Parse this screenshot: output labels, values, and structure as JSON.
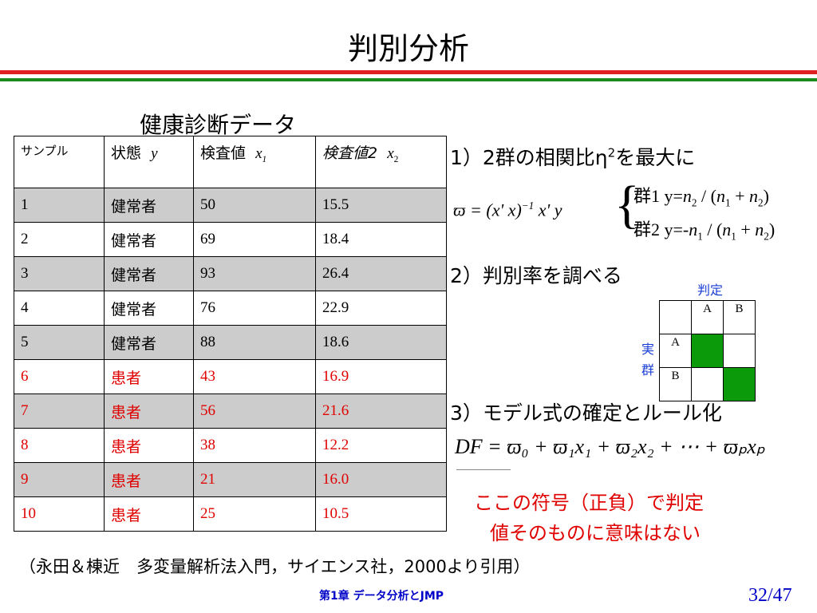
{
  "slide": {
    "title": "判別分析",
    "page": "32/47",
    "footer": "第1章 データ分析とJMP"
  },
  "colors": {
    "accent_red": "#e02020",
    "accent_green": "#1a8a1a",
    "patient_red": "#e00000",
    "footer_blue": "#0000c8",
    "cell_green": "#0a9a0a"
  },
  "table": {
    "caption": "健康診断データ",
    "headers": [
      "サンプル",
      "状態",
      "y",
      "検査値",
      "x",
      "1",
      "検査値2",
      "x",
      "2"
    ],
    "rows": [
      {
        "sample": "1",
        "state": "健常者",
        "x1": "50",
        "x2": "15.5"
      },
      {
        "sample": "2",
        "state": "健常者",
        "x1": "69",
        "x2": "18.4"
      },
      {
        "sample": "3",
        "state": "健常者",
        "x1": "93",
        "x2": "26.4"
      },
      {
        "sample": "4",
        "state": "健常者",
        "x1": "76",
        "x2": "22.9"
      },
      {
        "sample": "5",
        "state": "健常者",
        "x1": "88",
        "x2": "18.6"
      },
      {
        "sample": "6",
        "state": "患者",
        "x1": "43",
        "x2": "16.9"
      },
      {
        "sample": "7",
        "state": "患者",
        "x1": "56",
        "x2": "21.6"
      },
      {
        "sample": "8",
        "state": "患者",
        "x1": "38",
        "x2": "12.2"
      },
      {
        "sample": "9",
        "state": "患者",
        "x1": "21",
        "x2": "16.0"
      },
      {
        "sample": "10",
        "state": "患者",
        "x1": "25",
        "x2": "10.5"
      }
    ]
  },
  "step1": {
    "label": "1）2群の相関比η",
    "sup": "2",
    "label_tail": "を最大に",
    "formula": "ϖ = (x' x)",
    "formula_sup": "−1",
    "formula_tail": " x' y",
    "group1_prefix": "群1 y=",
    "group2_prefix": "群2 y=-",
    "n": "n",
    "sub1": "1",
    "sub2": "2",
    "slash": " / (",
    "plus": " + ",
    "close": ")"
  },
  "step2": {
    "label": "2）判別率を調べる",
    "judge_label": "判定",
    "actual_label": "実群",
    "col_a": "A",
    "col_b": "B",
    "row_a": "A",
    "row_b": "B"
  },
  "step3": {
    "label": "3）モデル式の確定とルール化",
    "formula": "DF = ϖ₀ + ϖ₁x₁ + ϖ₂x₂ + ⋯ + ϖₚxₚ"
  },
  "note": {
    "line1": "ここの符号（正負）で判定",
    "line2": "値そのものに意味はない"
  },
  "citation": "（永田＆棟近　多変量解析法入門，サイエンス社，2000より引用）"
}
